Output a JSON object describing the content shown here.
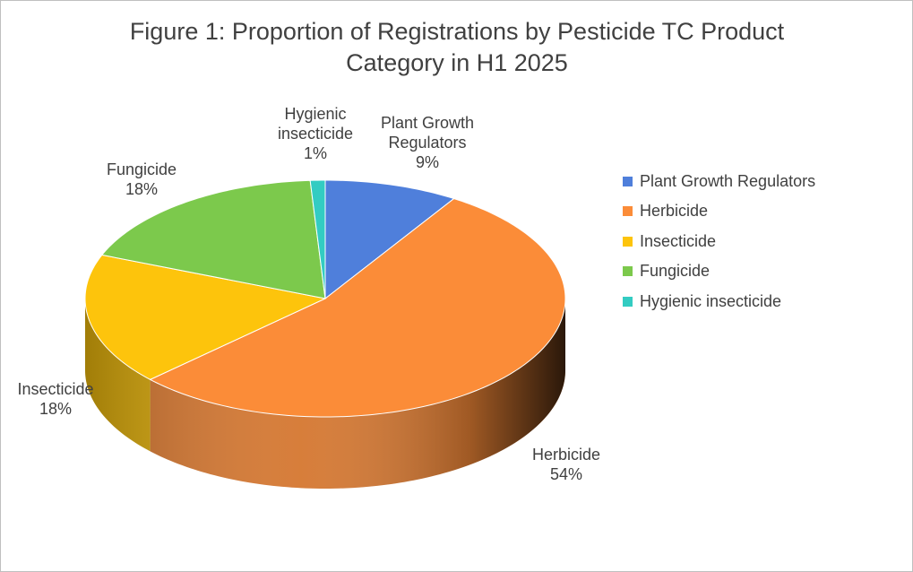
{
  "chart_data": {
    "type": "pie",
    "title": "Figure 1: Proportion of Registrations by Pesticide TC Product Category in H1 2025",
    "categories": [
      "Plant Growth Regulators",
      "Herbicide",
      "Insecticide",
      "Fungicide",
      "Hygienic insecticide"
    ],
    "values": [
      9,
      54,
      18,
      18,
      1
    ],
    "value_labels": [
      "9%",
      "54%",
      "18%",
      "18%",
      "1%"
    ],
    "colors": [
      "#4f7fdb",
      "#fb8c38",
      "#fdc40c",
      "#7cc94c",
      "#33ccc2"
    ],
    "legend": "right"
  }
}
